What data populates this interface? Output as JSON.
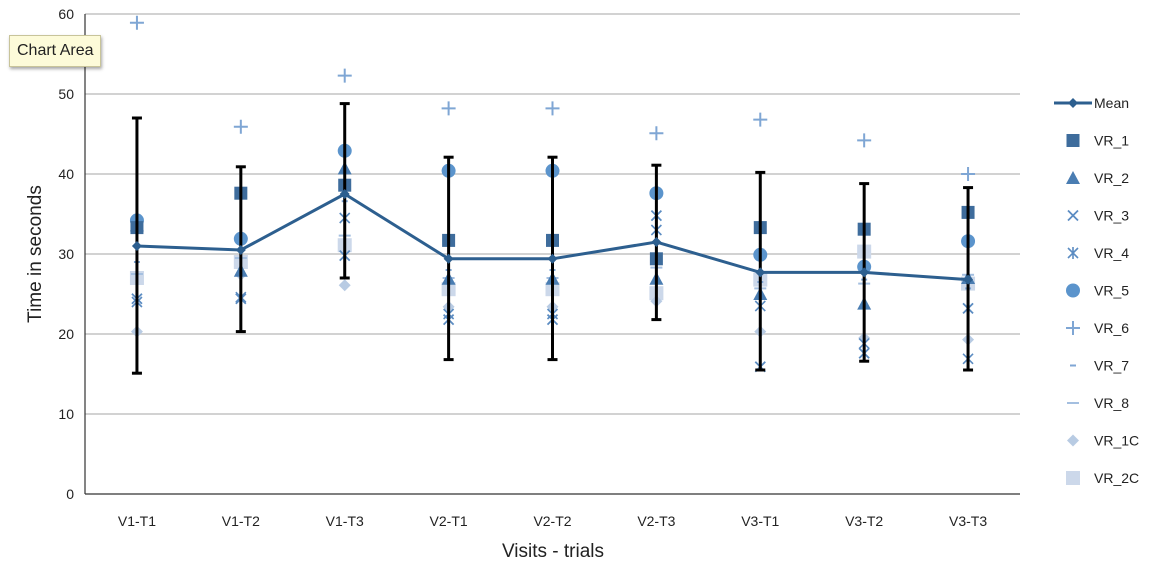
{
  "tooltip": {
    "label": "Chart Area"
  },
  "chart_data": {
    "type": "line",
    "categories": [
      "V1-T1",
      "V1-T2",
      "V1-T3",
      "V2-T1",
      "V2-T2",
      "V2-T3",
      "V3-T1",
      "V3-T2",
      "V3-T3"
    ],
    "xlabel": "Visits - trials",
    "ylabel": "Time in seconds",
    "ylim": [
      0,
      60
    ],
    "yticks": [
      0,
      10,
      20,
      30,
      40,
      50,
      60
    ],
    "grid": true,
    "legend_position": "right",
    "series": [
      {
        "name": "Mean",
        "marker": "diamond-line",
        "color": "#2d5f8f",
        "values": [
          31,
          30.5,
          37.5,
          29.4,
          29.4,
          31.5,
          27.7,
          27.7,
          26.8
        ],
        "error_low": [
          15.1,
          20.3,
          27.0,
          16.8,
          16.8,
          21.8,
          15.5,
          16.6,
          15.5
        ],
        "error_high": [
          47.0,
          40.9,
          48.8,
          42.1,
          42.1,
          41.1,
          40.2,
          38.8,
          38.3
        ]
      },
      {
        "name": "VR_1",
        "marker": "square",
        "color": "#3e6c9c",
        "values": [
          33.3,
          37.6,
          38.6,
          31.7,
          31.7,
          29.4,
          33.3,
          33.1,
          35.2
        ]
      },
      {
        "name": "VR_2",
        "marker": "triangle",
        "color": "#4a7db2",
        "values": [
          33.6,
          27.9,
          40.7,
          26.9,
          26.9,
          26.9,
          25.0,
          23.8,
          27.0
        ]
      },
      {
        "name": "VR_3",
        "marker": "x",
        "color": "#5b8cc2",
        "values": [
          24.4,
          24.4,
          29.8,
          21.8,
          21.8,
          34.8,
          15.9,
          17.6,
          23.2
        ]
      },
      {
        "name": "VR_4",
        "marker": "asterisk",
        "color": "#5b8cc2",
        "values": [
          24.0,
          24.6,
          34.5,
          22.5,
          22.5,
          33.0,
          23.5,
          18.8,
          16.9
        ]
      },
      {
        "name": "VR_5",
        "marker": "circle",
        "color": "#5b94cc",
        "values": [
          34.2,
          31.9,
          42.9,
          40.4,
          40.4,
          37.6,
          29.9,
          28.4,
          31.6
        ]
      },
      {
        "name": "VR_6",
        "marker": "plus",
        "color": "#7fa6d4",
        "values": [
          58.9,
          45.9,
          52.3,
          48.2,
          48.2,
          45.1,
          46.8,
          44.2,
          40.0
        ]
      },
      {
        "name": "VR_7",
        "marker": "short-dash",
        "color": "#7fa6d4",
        "values": [
          29.0,
          32.3,
          36.6,
          28.0,
          28.0,
          30.0,
          26.5,
          26.8,
          25.7
        ]
      },
      {
        "name": "VR_8",
        "marker": "dash",
        "color": "#a4bfe0",
        "values": [
          27.5,
          29.5,
          32.3,
          27.0,
          27.0,
          28.3,
          25.7,
          26.3,
          27.4
        ]
      },
      {
        "name": "VR_1C",
        "marker": "diamond",
        "color": "#b8cbe3",
        "values": [
          20.3,
          27.4,
          26.1,
          23.4,
          23.4,
          24.1,
          20.3,
          19.5,
          19.3
        ]
      },
      {
        "name": "VR_2C",
        "marker": "square-light",
        "color": "#ccd8ea",
        "values": [
          27.0,
          29.0,
          31.1,
          25.6,
          25.6,
          25.1,
          26.8,
          30.3,
          26.3
        ]
      }
    ]
  }
}
